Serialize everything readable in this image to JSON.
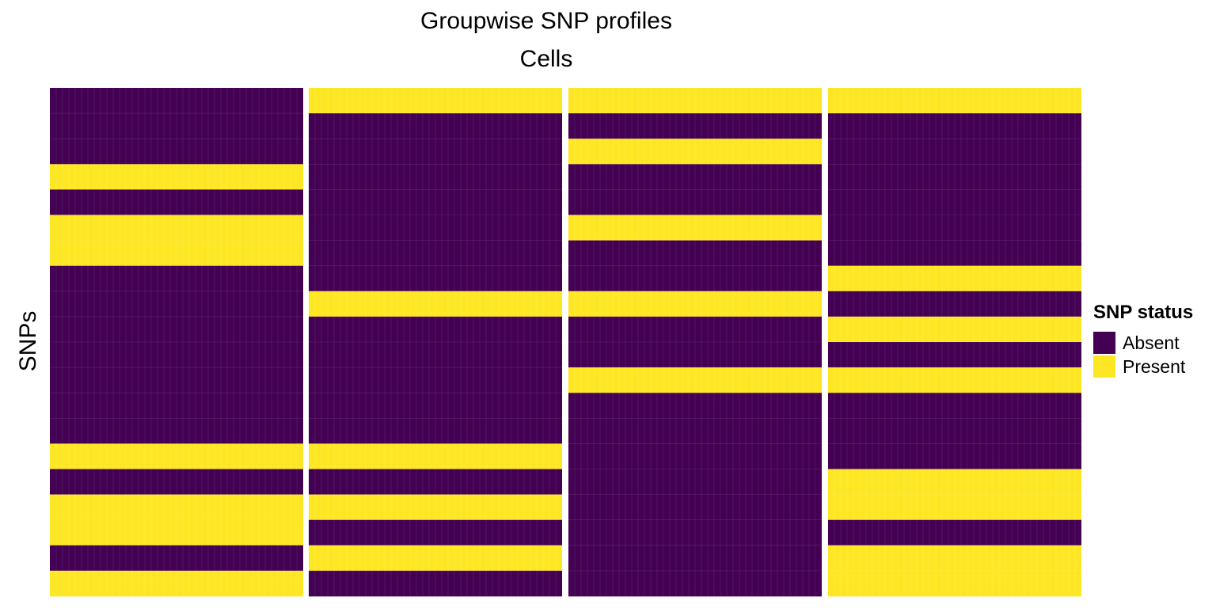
{
  "chart_data": {
    "type": "heatmap",
    "title": "Groupwise SNP profiles",
    "xlabel": "Cells",
    "ylabel": "SNPs",
    "legend": {
      "title": "SNP status",
      "position": "right",
      "items": [
        {
          "label": "Absent",
          "color": "#440154"
        },
        {
          "label": "Present",
          "color": "#FDE725"
        }
      ]
    },
    "n_snps": 20,
    "cells_per_group": 40,
    "grid": false,
    "groups": [
      {
        "rows": [
          0,
          0,
          0,
          1,
          0,
          1,
          1,
          0,
          0,
          0,
          0,
          0,
          0,
          0,
          1,
          0,
          1,
          1,
          0,
          1
        ]
      },
      {
        "rows": [
          1,
          0,
          0,
          0,
          0,
          0,
          0,
          0,
          1,
          0,
          0,
          0,
          0,
          0,
          1,
          0,
          1,
          0,
          1,
          0
        ]
      },
      {
        "rows": [
          1,
          0,
          1,
          0,
          0,
          1,
          0,
          0,
          1,
          0,
          0,
          1,
          0,
          0,
          0,
          0,
          0,
          0,
          0,
          0
        ]
      },
      {
        "rows": [
          1,
          0,
          0,
          0,
          0,
          0,
          0,
          1,
          0,
          1,
          0,
          1,
          0,
          0,
          0,
          1,
          1,
          0,
          1,
          1
        ]
      }
    ]
  }
}
